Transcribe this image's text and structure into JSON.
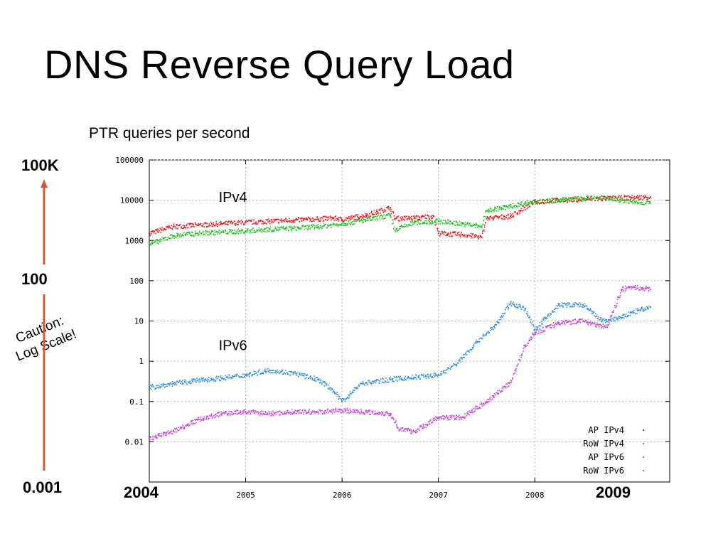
{
  "slide": {
    "title": "DNS Reverse Query Load"
  },
  "callouts": {
    "top_value": "100K",
    "mid_value": "100",
    "bottom_value": "0.001",
    "caution_line1": "Caution:",
    "caution_line2": "Log Scale!",
    "year_start": "2004",
    "year_end": "2009"
  },
  "colors": {
    "arrow": "#d9572f",
    "ap_ipv4": "#e8141a",
    "row_ipv4": "#1fbf1f",
    "ap_ipv6": "#2f8fde",
    "row_ipv6": "#c43fd8",
    "grid": "#b0b0b0"
  },
  "chart_data": {
    "type": "scatter",
    "title": "PTR queries per second",
    "xlabel": "",
    "ylabel": "",
    "yscale": "log",
    "ylim": [
      0.001,
      100000
    ],
    "xlim": [
      2004.0,
      2009.4
    ],
    "grid": true,
    "legend_position": "bottom-right",
    "y_tick_labels": [
      "100000",
      "10000",
      "1000",
      "100",
      "10",
      "1",
      "0.1",
      "0.01"
    ],
    "x_tick_labels": [
      "2005",
      "2006",
      "2007",
      "2008"
    ],
    "x_ticks": [
      2005,
      2006,
      2007,
      2008
    ],
    "annotations": [
      {
        "text": "IPv4",
        "x": 2004.72,
        "y": 9000
      },
      {
        "text": "IPv6",
        "x": 2004.72,
        "y": 1.9
      }
    ],
    "series": [
      {
        "name": "AP IPv4",
        "color": "#e8141a",
        "x": [
          2004.0,
          2004.25,
          2004.5,
          2004.75,
          2005.0,
          2005.25,
          2005.5,
          2005.75,
          2005.9,
          2006.0,
          2006.25,
          2006.5,
          2006.55,
          2006.75,
          2006.95,
          2007.0,
          2007.25,
          2007.45,
          2007.5,
          2007.75,
          2007.85,
          2008.0,
          2008.25,
          2008.5,
          2008.75,
          2009.0,
          2009.2
        ],
        "y": [
          1500,
          2200,
          2400,
          2600,
          2800,
          3000,
          3200,
          3400,
          3600,
          3300,
          4200,
          6500,
          3500,
          3600,
          4000,
          1500,
          1400,
          1200,
          3500,
          4000,
          5500,
          9000,
          10000,
          10500,
          11000,
          11500,
          12000
        ]
      },
      {
        "name": "RoW IPv4",
        "color": "#1fbf1f",
        "x": [
          2004.0,
          2004.25,
          2004.5,
          2004.75,
          2005.0,
          2005.25,
          2005.5,
          2005.75,
          2006.0,
          2006.25,
          2006.5,
          2006.55,
          2006.75,
          2007.0,
          2007.25,
          2007.45,
          2007.5,
          2007.75,
          2007.9,
          2008.0,
          2008.25,
          2008.5,
          2008.75,
          2009.0,
          2009.2
        ],
        "y": [
          800,
          1300,
          1500,
          1600,
          1700,
          1900,
          2000,
          2200,
          2600,
          3200,
          4200,
          1800,
          2800,
          3000,
          2600,
          2200,
          5500,
          7000,
          8500,
          9000,
          10000,
          11000,
          11500,
          9000,
          8500
        ]
      },
      {
        "name": "AP IPv6",
        "color": "#2f8fde",
        "x": [
          2004.0,
          2004.25,
          2004.5,
          2004.75,
          2005.0,
          2005.25,
          2005.5,
          2005.75,
          2005.9,
          2006.0,
          2006.2,
          2006.5,
          2006.75,
          2007.0,
          2007.2,
          2007.4,
          2007.6,
          2007.75,
          2007.9,
          2008.0,
          2008.25,
          2008.5,
          2008.7,
          2008.9,
          2009.0,
          2009.2
        ],
        "y": [
          0.22,
          0.28,
          0.33,
          0.38,
          0.45,
          0.6,
          0.5,
          0.35,
          0.2,
          0.1,
          0.28,
          0.35,
          0.4,
          0.45,
          0.9,
          3,
          8,
          28,
          20,
          6,
          25,
          25,
          10,
          12,
          16,
          22
        ]
      },
      {
        "name": "RoW IPv6",
        "color": "#c43fd8",
        "x": [
          2004.0,
          2004.25,
          2004.5,
          2004.75,
          2005.0,
          2005.25,
          2005.5,
          2005.75,
          2006.0,
          2006.25,
          2006.5,
          2006.6,
          2006.75,
          2007.0,
          2007.25,
          2007.5,
          2007.75,
          2007.9,
          2008.0,
          2008.25,
          2008.5,
          2008.75,
          2008.9,
          2009.0,
          2009.2
        ],
        "y": [
          0.012,
          0.018,
          0.035,
          0.05,
          0.055,
          0.05,
          0.055,
          0.055,
          0.06,
          0.055,
          0.05,
          0.02,
          0.018,
          0.04,
          0.04,
          0.1,
          0.3,
          2.5,
          5,
          9,
          10,
          7,
          60,
          70,
          60
        ]
      }
    ]
  }
}
